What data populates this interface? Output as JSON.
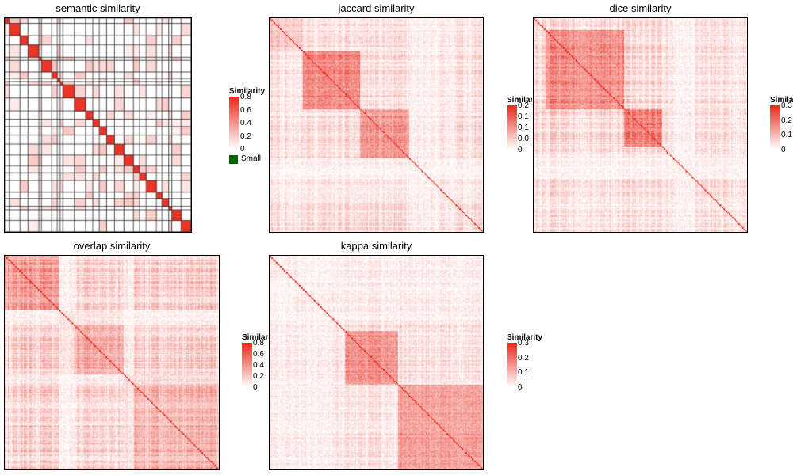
{
  "panels": [
    {
      "title": "semantic similarity",
      "legend_title": "Similarity",
      "ticks": [
        "0.8",
        "0.6",
        "0.4",
        "0.2",
        "0"
      ],
      "tick_values": [
        0.8,
        0.6,
        0.4,
        0.2,
        0
      ],
      "extra_legend": {
        "label": "Small",
        "color": "#006400"
      }
    },
    {
      "title": "jaccard similarity",
      "legend_title": "Similarity",
      "ticks": [
        "0.2",
        "0.1",
        "0.1",
        "0.0",
        "0"
      ],
      "tick_values": [
        0.2,
        0.15,
        0.1,
        0.05,
        0
      ]
    },
    {
      "title": "dice similarity",
      "legend_title": "Similarity",
      "ticks": [
        "0.3",
        "0.2",
        "0.1",
        "0"
      ],
      "tick_values": [
        0.3,
        0.2,
        0.1,
        0
      ]
    },
    {
      "title": "overlap similarity",
      "legend_title": "Similarity",
      "ticks": [
        "0.8",
        "0.6",
        "0.4",
        "0.2",
        "0"
      ],
      "tick_values": [
        0.8,
        0.6,
        0.4,
        0.2,
        0
      ]
    },
    {
      "title": "kappa similarity",
      "legend_title": "Similarity",
      "ticks": [
        "0.3",
        "0.2",
        "0.1",
        "0"
      ],
      "tick_values": [
        0.3,
        0.2,
        0.1,
        0
      ]
    }
  ],
  "chart_data": [
    {
      "type": "heatmap",
      "title": "semantic similarity",
      "legend_title": "Similarity",
      "color_range": [
        0,
        0.8
      ],
      "colors": {
        "low": "#ffffff",
        "high": "#e8291c"
      },
      "grid": true
    },
    {
      "type": "heatmap",
      "title": "jaccard similarity",
      "legend_title": "Similarity",
      "color_range": [
        0,
        0.2
      ],
      "colors": {
        "low": "#ffffff",
        "high": "#e8291c"
      },
      "grid": false
    },
    {
      "type": "heatmap",
      "title": "dice similarity",
      "legend_title": "Similarity",
      "color_range": [
        0,
        0.3
      ],
      "colors": {
        "low": "#ffffff",
        "high": "#e8291c"
      },
      "grid": false
    },
    {
      "type": "heatmap",
      "title": "overlap similarity",
      "legend_title": "Similarity",
      "color_range": [
        0,
        0.8
      ],
      "colors": {
        "low": "#ffffff",
        "high": "#e8291c"
      },
      "grid": false
    },
    {
      "type": "heatmap",
      "title": "kappa similarity",
      "legend_title": "Similarity",
      "color_range": [
        0,
        0.3
      ],
      "colors": {
        "low": "#ffffff",
        "high": "#e8291c"
      },
      "grid": false
    }
  ]
}
